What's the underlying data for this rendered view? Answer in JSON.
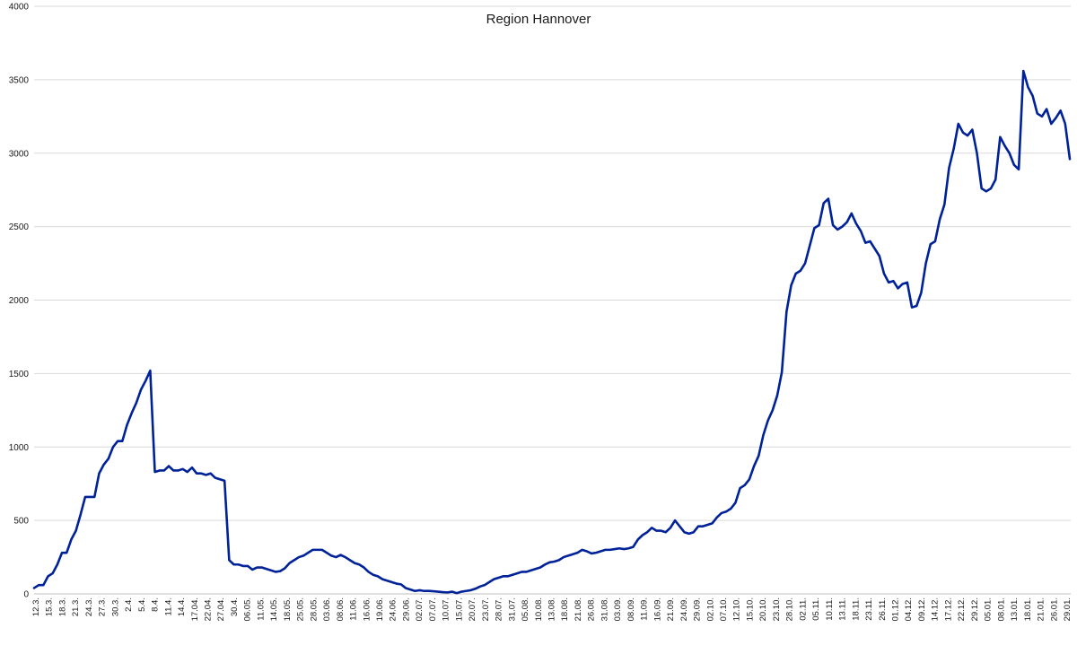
{
  "chart_data": {
    "type": "line",
    "title": "Region Hannover",
    "xlabel": "",
    "ylabel": "",
    "ylim": [
      0,
      4000
    ],
    "yticks": [
      0,
      500,
      1000,
      1500,
      2000,
      2500,
      3000,
      3500,
      4000
    ],
    "grid": true,
    "legend": "none",
    "line_color": "#002299",
    "x_tick_labels": [
      "12.3.",
      "15.3.",
      "18.3.",
      "21.3.",
      "24.3.",
      "27.3.",
      "30.3.",
      "2.4.",
      "5.4.",
      "8.4.",
      "11.4.",
      "14.4.",
      "17.04.",
      "22.04.",
      "27.04.",
      "30.4.",
      "06.05.",
      "11.05.",
      "14.05.",
      "18.05.",
      "25.05.",
      "28.05.",
      "03.06.",
      "08.06.",
      "11.06.",
      "16.06.",
      "19.06.",
      "24.06.",
      "29.06.",
      "02.07.",
      "07.07.",
      "10.07.",
      "15.07.",
      "20.07.",
      "23.07.",
      "28.07.",
      "31.07.",
      "05.08.",
      "10.08.",
      "13.08.",
      "18.08.",
      "21.08.",
      "26.08.",
      "31.08.",
      "03.09.",
      "08.09.",
      "11.09.",
      "16.09.",
      "21.09.",
      "24.09.",
      "29.09.",
      "02.10.",
      "07.10.",
      "12.10.",
      "15.10.",
      "20.10.",
      "23.10.",
      "28.10.",
      "02.11.",
      "05.11.",
      "10.11.",
      "13.11.",
      "18.11.",
      "23.11.",
      "26.11.",
      "01.12.",
      "04.12.",
      "09.12.",
      "14.12.",
      "17.12.",
      "22.12.",
      "29.12.",
      "05.01.",
      "08.01.",
      "13.01.",
      "18.01.",
      "21.01.",
      "26.01.",
      "29.01."
    ],
    "series": [
      {
        "values": [
          40,
          60,
          60,
          120,
          140,
          200,
          280,
          280,
          370,
          430,
          540,
          660,
          660,
          660,
          820,
          880,
          920,
          1000,
          1040,
          1040,
          1150,
          1230,
          1300,
          1390,
          1450,
          1520,
          830,
          840,
          840,
          870,
          840,
          840,
          850,
          830,
          860,
          820,
          820,
          810,
          820,
          790,
          780,
          770,
          230,
          200,
          200,
          190,
          190,
          165,
          180,
          180,
          170,
          160,
          150,
          155,
          175,
          210,
          230,
          250,
          260,
          280,
          300,
          300,
          300,
          280,
          260,
          250,
          265,
          250,
          230,
          210,
          200,
          180,
          150,
          130,
          120,
          100,
          90,
          80,
          70,
          65,
          40,
          30,
          20,
          25,
          20,
          20,
          18,
          15,
          12,
          10,
          15,
          5,
          15,
          20,
          25,
          35,
          50,
          60,
          80,
          100,
          110,
          120,
          120,
          130,
          140,
          150,
          150,
          160,
          170,
          180,
          200,
          215,
          220,
          230,
          250,
          260,
          270,
          280,
          300,
          290,
          275,
          280,
          290,
          300,
          300,
          305,
          310,
          305,
          310,
          320,
          370,
          400,
          420,
          450,
          430,
          430,
          420,
          450,
          500,
          460,
          420,
          410,
          420,
          460,
          460,
          470,
          480,
          520,
          550,
          560,
          580,
          620,
          720,
          740,
          780,
          870,
          940,
          1080,
          1180,
          1250,
          1350,
          1510,
          1920,
          2100,
          2180,
          2200,
          2250,
          2370,
          2490,
          2510,
          2660,
          2690,
          2510,
          2480,
          2500,
          2530,
          2590,
          2520,
          2470,
          2390,
          2400,
          2350,
          2300,
          2180,
          2120,
          2130,
          2080,
          2110,
          2120,
          1950,
          1960,
          2050,
          2250,
          2380,
          2400,
          2550,
          2650,
          2900,
          3030,
          3200,
          3140,
          3120,
          3160,
          3000,
          2760,
          2740,
          2760,
          2820,
          3110,
          3050,
          3000,
          2920,
          2890,
          3560,
          3450,
          3390,
          3270,
          3250,
          3300,
          3200,
          3240,
          3290,
          3200,
          2960
        ]
      }
    ]
  }
}
